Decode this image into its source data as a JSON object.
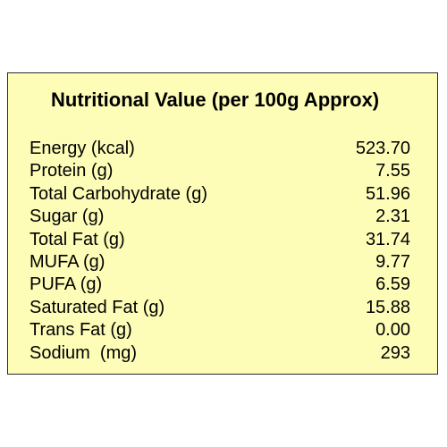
{
  "title": "Nutritional Value (per 100g Approx)",
  "rows": [
    {
      "label": "Energy (kcal)",
      "value": "523.70"
    },
    {
      "label": "Protein (g)",
      "value": "7.55"
    },
    {
      "label": "Total Carbohydrate (g)",
      "value": "51.96"
    },
    {
      "label": "Sugar (g)",
      "value": "2.31"
    },
    {
      "label": "Total Fat (g)",
      "value": "31.74"
    },
    {
      "label": "MUFA (g)",
      "value": "9.77"
    },
    {
      "label": "PUFA (g)",
      "value": "6.59"
    },
    {
      "label": "Saturated Fat (g)",
      "value": "15.88"
    },
    {
      "label": "Trans Fat (g)",
      "value": "0.00"
    },
    {
      "label": "Sodium  (mg)",
      "value": "293"
    }
  ],
  "colors": {
    "panel_background": "#fdfdb8",
    "border": "#2a2a2a",
    "text": "#000000"
  }
}
